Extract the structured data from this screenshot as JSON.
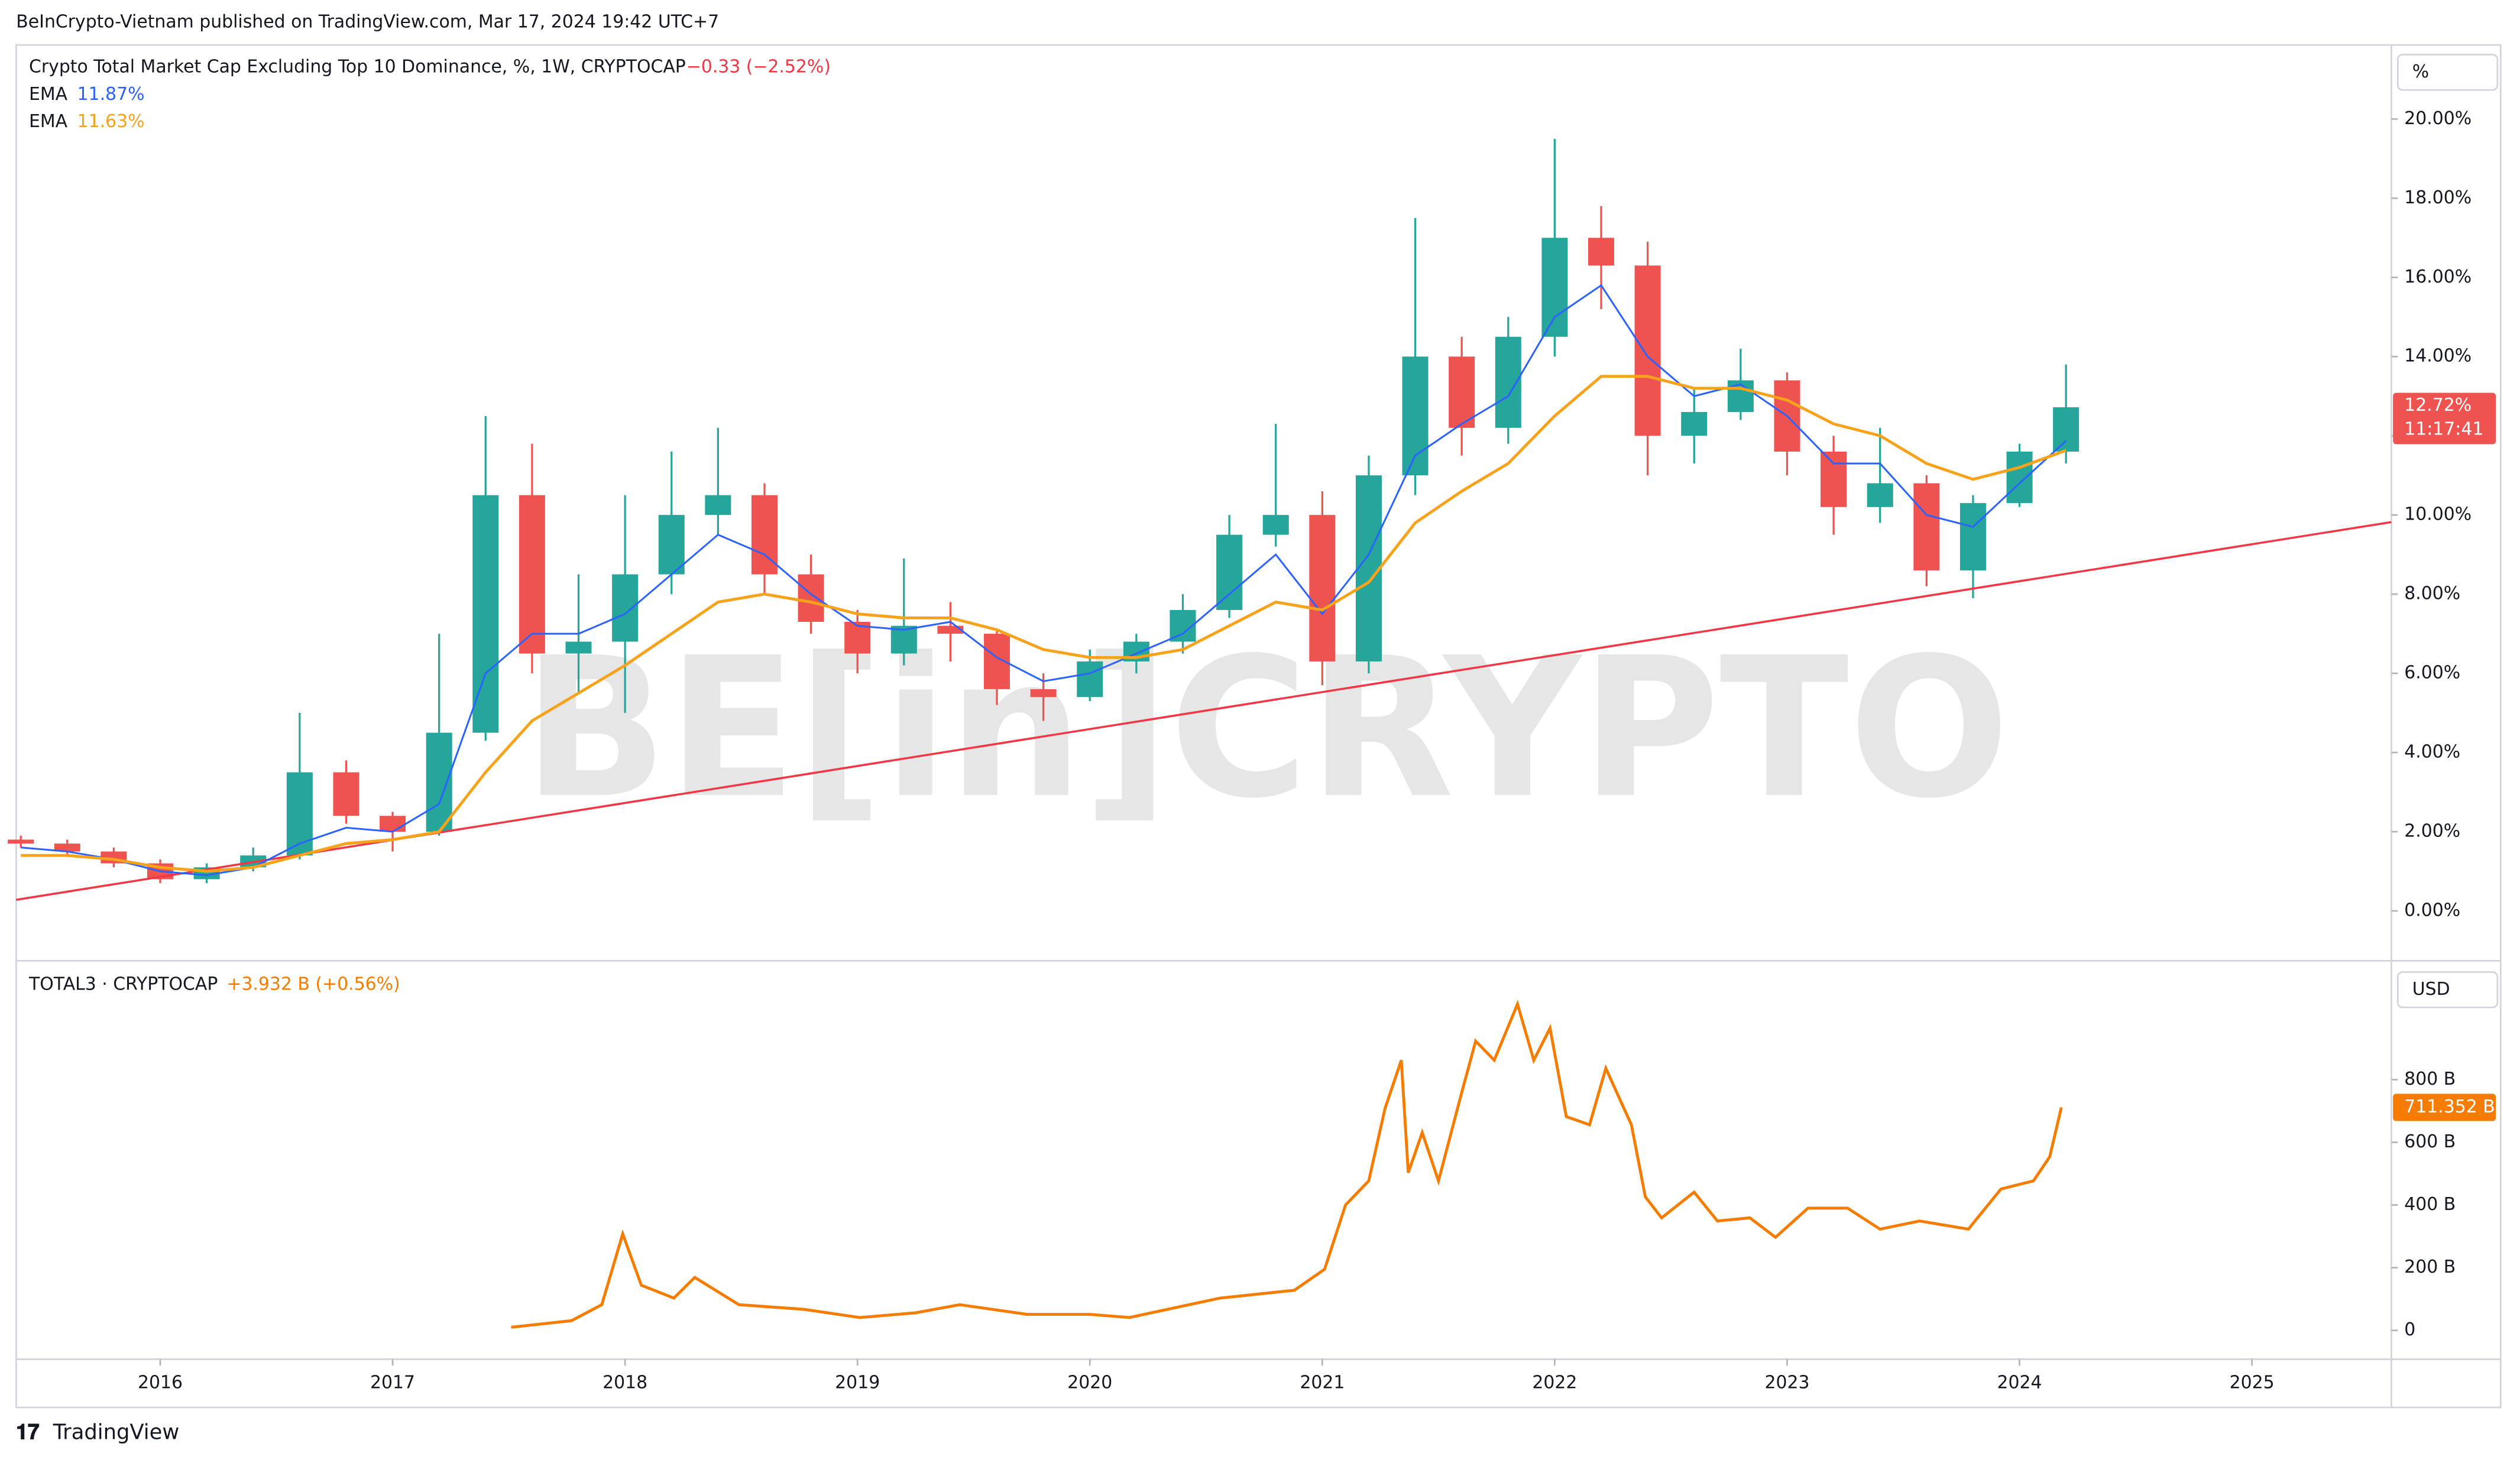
{
  "attribution": "BeInCrypto-Vietnam published on TradingView.com, Mar 17, 2024 19:42 UTC+7",
  "footer": "TradingView",
  "watermark": "BE[in]CRYPTO",
  "chart_data": [
    {
      "type": "candlestick",
      "title": "Crypto Total Market Cap Excluding Top 10 Dominance, %, 1W, CRYPTOCAP",
      "change": "−0.33 (−2.52%)",
      "unit": "%",
      "last_value_label": "12.72%",
      "countdown": "11:17:41",
      "up_color": "#26a69a",
      "down_color": "#ef5350",
      "x": [
        2015.4,
        2015.6,
        2015.8,
        2016.0,
        2016.2,
        2016.4,
        2016.6,
        2016.8,
        2017.0,
        2017.2,
        2017.4,
        2017.6,
        2017.8,
        2018.0,
        2018.2,
        2018.4,
        2018.6,
        2018.8,
        2019.0,
        2019.2,
        2019.4,
        2019.6,
        2019.8,
        2020.0,
        2020.2,
        2020.4,
        2020.6,
        2020.8,
        2021.0,
        2021.2,
        2021.4,
        2021.6,
        2021.8,
        2022.0,
        2022.2,
        2022.4,
        2022.6,
        2022.8,
        2023.0,
        2023.2,
        2023.4,
        2023.6,
        2023.8,
        2024.0,
        2024.2
      ],
      "open": [
        1.8,
        1.7,
        1.5,
        1.2,
        0.8,
        1.1,
        1.4,
        3.5,
        2.4,
        2.0,
        4.5,
        10.5,
        6.5,
        6.8,
        8.5,
        10.0,
        10.5,
        8.5,
        7.3,
        6.5,
        7.2,
        7.0,
        5.6,
        5.4,
        6.3,
        6.8,
        7.6,
        9.5,
        10.0,
        6.3,
        11.0,
        14.0,
        12.2,
        14.5,
        17.0,
        16.3,
        12.0,
        12.6,
        13.4,
        11.6,
        10.2,
        10.8,
        8.6,
        10.3,
        11.6
      ],
      "high": [
        1.9,
        1.8,
        1.6,
        1.3,
        1.2,
        1.6,
        5.0,
        3.8,
        2.5,
        7.0,
        12.5,
        11.8,
        8.5,
        10.5,
        11.6,
        12.2,
        10.8,
        9.0,
        7.6,
        8.9,
        7.8,
        7.1,
        6.0,
        6.6,
        7.0,
        8.0,
        10.0,
        12.3,
        10.6,
        11.5,
        17.5,
        14.5,
        15.0,
        19.5,
        17.8,
        16.9,
        13.2,
        14.2,
        13.6,
        12.0,
        12.2,
        11.0,
        10.5,
        11.8,
        13.8
      ],
      "low": [
        1.6,
        1.4,
        1.1,
        0.7,
        0.7,
        1.0,
        1.3,
        2.2,
        1.5,
        1.9,
        4.3,
        6.0,
        5.5,
        5.0,
        8.0,
        9.5,
        8.0,
        7.0,
        6.0,
        6.2,
        6.3,
        5.2,
        4.8,
        5.3,
        6.0,
        6.5,
        7.4,
        9.2,
        5.7,
        6.0,
        10.5,
        11.5,
        11.8,
        14.0,
        15.2,
        11.0,
        11.3,
        12.4,
        11.0,
        9.5,
        9.8,
        8.2,
        7.9,
        10.2,
        11.3
      ],
      "close": [
        1.7,
        1.5,
        1.2,
        0.8,
        1.1,
        1.4,
        3.5,
        2.4,
        2.0,
        4.5,
        10.5,
        6.5,
        6.8,
        8.5,
        10.0,
        10.5,
        8.5,
        7.3,
        6.5,
        7.2,
        7.0,
        5.6,
        5.4,
        6.3,
        6.8,
        7.6,
        9.5,
        10.0,
        6.3,
        11.0,
        14.0,
        12.2,
        14.5,
        17.0,
        16.3,
        12.0,
        12.6,
        13.4,
        11.6,
        10.2,
        10.8,
        8.6,
        10.3,
        11.6,
        12.72
      ],
      "series": [
        {
          "name": "EMA",
          "legend_value": "11.87%",
          "color": "#2962ff",
          "values": [
            1.6,
            1.5,
            1.3,
            1.0,
            0.9,
            1.1,
            1.7,
            2.1,
            2.0,
            2.7,
            6.0,
            7.0,
            7.0,
            7.5,
            8.5,
            9.5,
            9.0,
            8.0,
            7.2,
            7.1,
            7.3,
            6.4,
            5.8,
            6.0,
            6.5,
            7.0,
            8.0,
            9.0,
            7.5,
            9.0,
            11.5,
            12.3,
            13.0,
            15.0,
            15.8,
            14.0,
            13.0,
            13.3,
            12.5,
            11.3,
            11.3,
            10.0,
            9.7,
            10.8,
            11.87
          ]
        },
        {
          "name": "EMA",
          "legend_value": "11.63%",
          "color": "#f7a21b",
          "values": [
            1.4,
            1.4,
            1.3,
            1.1,
            1.0,
            1.1,
            1.4,
            1.7,
            1.8,
            2.0,
            3.5,
            4.8,
            5.5,
            6.2,
            7.0,
            7.8,
            8.0,
            7.8,
            7.5,
            7.4,
            7.4,
            7.1,
            6.6,
            6.4,
            6.4,
            6.6,
            7.2,
            7.8,
            7.6,
            8.3,
            9.8,
            10.6,
            11.3,
            12.5,
            13.5,
            13.5,
            13.2,
            13.2,
            12.9,
            12.3,
            12.0,
            11.3,
            10.9,
            11.2,
            11.63
          ]
        }
      ],
      "trendline": {
        "color": "#f23645",
        "x": [
          2015.38,
          2025.6
        ],
        "values": [
          0.28,
          9.82
        ]
      },
      "xlim": [
        2015.38,
        2025.6
      ],
      "ylim": [
        -1.26,
        21.87
      ],
      "yticks": [
        {
          "value": 0,
          "label": "0.00%"
        },
        {
          "value": 2,
          "label": "2.00%"
        },
        {
          "value": 4,
          "label": "4.00%"
        },
        {
          "value": 6,
          "label": "6.00%"
        },
        {
          "value": 8,
          "label": "8.00%"
        },
        {
          "value": 10,
          "label": "10.00%"
        },
        {
          "value": 12,
          "label": "12.00%"
        },
        {
          "value": 14,
          "label": "14.00%"
        },
        {
          "value": 16,
          "label": "16.00%"
        },
        {
          "value": 18,
          "label": "18.00%"
        },
        {
          "value": 20,
          "label": "20.00%"
        }
      ]
    },
    {
      "type": "line",
      "title": "TOTAL3 · CRYPTOCAP",
      "change": "+3.932 B (+0.56%)",
      "unit": "USD",
      "last_value_label": "711.352 B",
      "color": "#f57c00",
      "x": [
        2017.51,
        2017.77,
        2017.9,
        2017.99,
        2018.07,
        2018.21,
        2018.3,
        2018.49,
        2018.77,
        2019.01,
        2019.25,
        2019.44,
        2019.73,
        2020.0,
        2020.17,
        2020.56,
        2020.88,
        2021.01,
        2021.1,
        2021.2,
        2021.27,
        2021.34,
        2021.37,
        2021.43,
        2021.5,
        2021.6,
        2021.66,
        2021.74,
        2021.84,
        2021.91,
        2021.98,
        2022.05,
        2022.15,
        2022.22,
        2022.33,
        2022.39,
        2022.46,
        2022.6,
        2022.7,
        2022.84,
        2022.95,
        2023.09,
        2023.26,
        2023.4,
        2023.57,
        2023.78,
        2023.92,
        2024.06,
        2024.13,
        2024.18
      ],
      "values": [
        10,
        31,
        82,
        308,
        144,
        103,
        169,
        82,
        67,
        41,
        56,
        82,
        51,
        51,
        41,
        103,
        128,
        195,
        400,
        477,
        708,
        862,
        503,
        631,
        477,
        759,
        923,
        862,
        1041,
        862,
        964,
        682,
        656,
        836,
        656,
        426,
        359,
        441,
        349,
        359,
        297,
        390,
        390,
        323,
        349,
        323,
        451,
        477,
        554,
        711.352
      ],
      "xlim": [
        2015.38,
        2025.6
      ],
      "ylim": [
        -92,
        1169
      ],
      "yticks": [
        0,
        {
          "value": 200,
          "label": "200 B"
        },
        {
          "value": 400,
          "label": "400 B"
        },
        {
          "value": 600,
          "label": "600 B"
        },
        {
          "value": 800,
          "label": "800 B"
        }
      ],
      "xticks": [
        2016,
        2017,
        2018,
        2019,
        2020,
        2021,
        2022,
        2023,
        2024,
        2025
      ]
    }
  ]
}
